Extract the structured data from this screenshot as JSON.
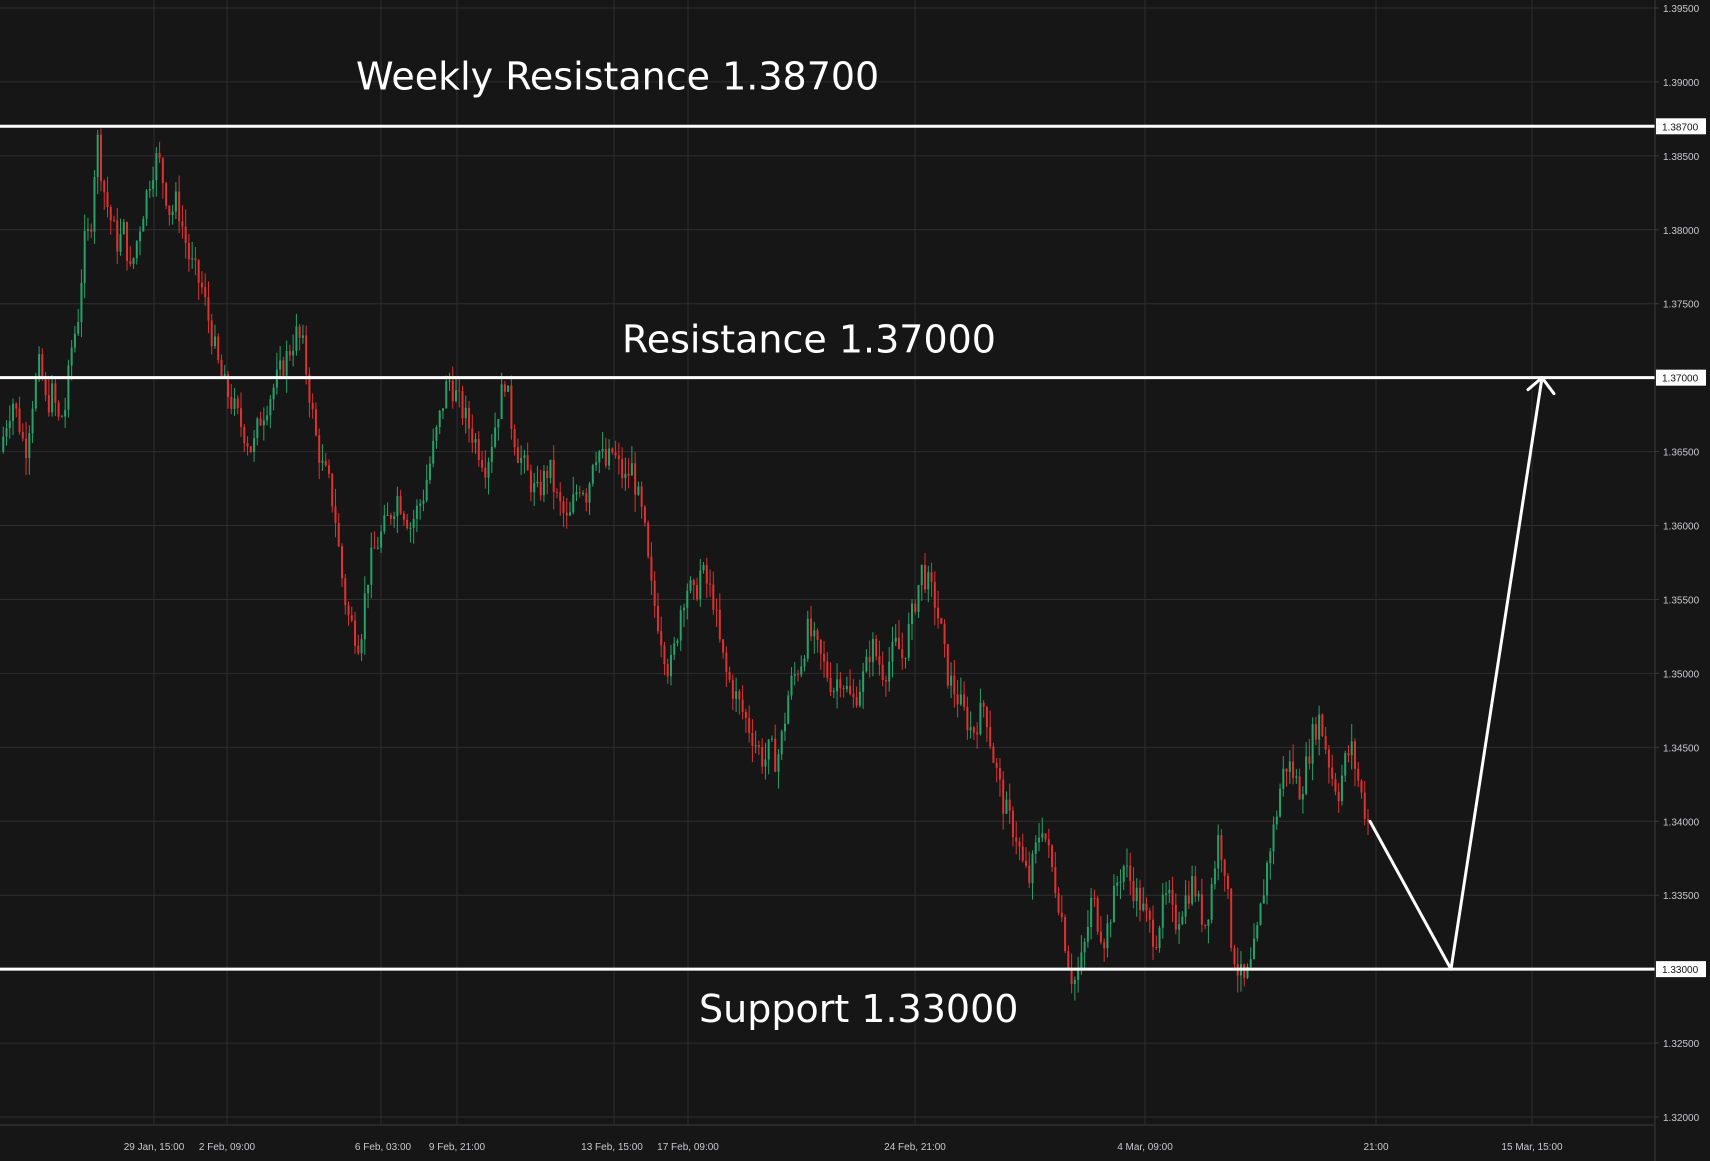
{
  "colors": {
    "background": "#161617",
    "grid": "#2e2e30",
    "up": "#26a269",
    "down": "#e0312f",
    "level": "#ffffff"
  },
  "chart_data": {
    "type": "candlestick",
    "instrument_price_axis": "right",
    "ylim": [
      1.3175,
      1.395
    ],
    "grid": true,
    "price_ticks": [
      "1.32000",
      "1.32500",
      "1.33000",
      "1.33500",
      "1.34000",
      "1.34500",
      "1.35000",
      "1.35500",
      "1.36000",
      "1.36500",
      "1.37000",
      "1.37500",
      "1.38000",
      "1.38500",
      "1.38700",
      "1.39000",
      "1.39500"
    ],
    "time_ticks": [
      "29 Jan, 15:00",
      "2 Feb, 09:00",
      "6 Feb, 03:00",
      "9 Feb, 21:00",
      "13 Feb, 15:00",
      "17 Feb, 09:00",
      "24 Feb, 21:00",
      "4 Mar, 09:00",
      "21:00",
      "15 Mar, 15:00"
    ],
    "levels": [
      {
        "label": "Weekly Resistance 1.38700",
        "price": 1.387,
        "tag": "1.38700"
      },
      {
        "label": "Resistance 1.37000",
        "price": 1.37,
        "tag": "1.37000"
      },
      {
        "label": "Support 1.33000",
        "price": 1.33,
        "tag": "1.33000"
      }
    ],
    "close_path": [
      [
        0,
        1.365
      ],
      [
        0.3,
        1.367
      ],
      [
        0.6,
        1.3685
      ],
      [
        0.9,
        1.367
      ],
      [
        1.2,
        1.365
      ],
      [
        1.6,
        1.369
      ],
      [
        1.9,
        1.371
      ],
      [
        2.2,
        1.368
      ],
      [
        2.5,
        1.369
      ],
      [
        2.8,
        1.367
      ],
      [
        3.1,
        1.368
      ],
      [
        3.4,
        1.372
      ],
      [
        3.7,
        1.374
      ],
      [
        4.0,
        1.379
      ],
      [
        4.3,
        1.38
      ],
      [
        4.6,
        1.3865
      ],
      [
        4.9,
        1.383
      ],
      [
        5.2,
        1.381
      ],
      [
        5.6,
        1.379
      ],
      [
        5.9,
        1.38
      ],
      [
        6.2,
        1.377
      ],
      [
        6.6,
        1.38
      ],
      [
        6.9,
        1.382
      ],
      [
        7.2,
        1.384
      ],
      [
        7.5,
        1.385
      ],
      [
        7.8,
        1.383
      ],
      [
        8.1,
        1.381
      ],
      [
        8.4,
        1.382
      ],
      [
        8.7,
        1.38
      ],
      [
        9.0,
        1.378
      ],
      [
        9.3,
        1.377
      ],
      [
        9.6,
        1.376
      ],
      [
        9.9,
        1.374
      ],
      [
        10.2,
        1.372
      ],
      [
        10.5,
        1.37
      ],
      [
        10.8,
        1.369
      ],
      [
        11.1,
        1.368
      ],
      [
        11.4,
        1.367
      ],
      [
        11.7,
        1.366
      ],
      [
        12.0,
        1.365
      ],
      [
        12.3,
        1.367
      ],
      [
        12.6,
        1.368
      ],
      [
        12.9,
        1.369
      ],
      [
        13.2,
        1.37
      ],
      [
        13.5,
        1.371
      ],
      [
        13.8,
        1.372
      ],
      [
        14.1,
        1.373
      ],
      [
        14.4,
        1.372
      ],
      [
        14.7,
        1.369
      ],
      [
        15.0,
        1.366
      ],
      [
        15.3,
        1.364
      ],
      [
        15.6,
        1.363
      ],
      [
        15.9,
        1.361
      ],
      [
        16.2,
        1.357
      ],
      [
        16.5,
        1.354
      ],
      [
        16.8,
        1.353
      ],
      [
        17.1,
        1.352
      ],
      [
        17.4,
        1.356
      ],
      [
        17.7,
        1.358
      ],
      [
        18.0,
        1.359
      ],
      [
        18.3,
        1.36
      ],
      [
        18.6,
        1.361
      ],
      [
        18.9,
        1.362
      ],
      [
        19.2,
        1.361
      ],
      [
        19.5,
        1.36
      ],
      [
        19.8,
        1.361
      ],
      [
        20.1,
        1.362
      ],
      [
        20.4,
        1.364
      ],
      [
        20.7,
        1.366
      ],
      [
        21.0,
        1.368
      ],
      [
        21.3,
        1.37
      ],
      [
        21.6,
        1.369
      ],
      [
        21.9,
        1.368
      ],
      [
        22.2,
        1.367
      ],
      [
        22.5,
        1.366
      ],
      [
        22.8,
        1.365
      ],
      [
        23.1,
        1.364
      ],
      [
        23.4,
        1.366
      ],
      [
        23.7,
        1.368
      ],
      [
        24.0,
        1.37
      ],
      [
        24.3,
        1.367
      ],
      [
        24.6,
        1.365
      ],
      [
        24.9,
        1.364
      ],
      [
        25.2,
        1.363
      ],
      [
        25.5,
        1.362
      ],
      [
        25.8,
        1.363
      ],
      [
        26.1,
        1.364
      ],
      [
        26.4,
        1.362
      ],
      [
        26.7,
        1.361
      ],
      [
        27.0,
        1.36
      ],
      [
        27.3,
        1.362
      ],
      [
        27.6,
        1.363
      ],
      [
        27.9,
        1.362
      ],
      [
        28.2,
        1.365
      ],
      [
        28.5,
        1.365
      ],
      [
        28.8,
        1.364
      ],
      [
        29.1,
        1.365
      ],
      [
        29.4,
        1.364
      ],
      [
        29.7,
        1.363
      ],
      [
        30.0,
        1.364
      ],
      [
        30.3,
        1.362
      ],
      [
        30.6,
        1.36
      ],
      [
        30.9,
        1.356
      ],
      [
        31.2,
        1.354
      ],
      [
        31.5,
        1.352
      ],
      [
        31.8,
        1.35
      ],
      [
        32.1,
        1.352
      ],
      [
        32.4,
        1.355
      ],
      [
        32.7,
        1.356
      ],
      [
        33.0,
        1.355
      ],
      [
        33.3,
        1.357
      ],
      [
        33.6,
        1.356
      ],
      [
        33.9,
        1.355
      ],
      [
        34.2,
        1.352
      ],
      [
        34.5,
        1.35
      ],
      [
        34.8,
        1.349
      ],
      [
        35.1,
        1.348
      ],
      [
        35.4,
        1.347
      ],
      [
        35.7,
        1.346
      ],
      [
        36.0,
        1.345
      ],
      [
        36.3,
        1.344
      ],
      [
        36.6,
        1.345
      ],
      [
        36.9,
        1.344
      ],
      [
        37.2,
        1.346
      ],
      [
        37.5,
        1.349
      ],
      [
        37.8,
        1.35
      ],
      [
        38.1,
        1.351
      ],
      [
        38.4,
        1.353
      ],
      [
        38.7,
        1.352
      ],
      [
        39.0,
        1.351
      ],
      [
        39.3,
        1.35
      ],
      [
        39.6,
        1.349
      ],
      [
        39.9,
        1.35
      ],
      [
        40.2,
        1.349
      ],
      [
        40.5,
        1.348
      ],
      [
        40.8,
        1.349
      ],
      [
        41.1,
        1.35
      ],
      [
        41.4,
        1.352
      ],
      [
        41.7,
        1.351
      ],
      [
        42.0,
        1.35
      ],
      [
        42.3,
        1.351
      ],
      [
        42.6,
        1.352
      ],
      [
        42.9,
        1.351
      ],
      [
        43.2,
        1.353
      ],
      [
        43.5,
        1.355
      ],
      [
        43.8,
        1.357
      ],
      [
        44.1,
        1.356
      ],
      [
        44.4,
        1.355
      ],
      [
        44.7,
        1.353
      ],
      [
        45.0,
        1.35
      ],
      [
        45.3,
        1.349
      ],
      [
        45.6,
        1.348
      ],
      [
        45.9,
        1.347
      ],
      [
        46.2,
        1.346
      ],
      [
        46.5,
        1.347
      ],
      [
        46.8,
        1.348
      ],
      [
        47.1,
        1.345
      ],
      [
        47.4,
        1.343
      ],
      [
        47.7,
        1.341
      ],
      [
        48.0,
        1.34
      ],
      [
        48.3,
        1.339
      ],
      [
        48.6,
        1.337
      ],
      [
        48.9,
        1.336
      ],
      [
        49.2,
        1.338
      ],
      [
        49.5,
        1.34
      ],
      [
        49.8,
        1.338
      ],
      [
        50.1,
        1.336
      ],
      [
        50.4,
        1.334
      ],
      [
        50.7,
        1.331
      ],
      [
        51.0,
        1.329
      ],
      [
        51.3,
        1.33
      ],
      [
        51.6,
        1.332
      ],
      [
        51.9,
        1.335
      ],
      [
        52.2,
        1.333
      ],
      [
        52.5,
        1.332
      ],
      [
        52.8,
        1.334
      ],
      [
        53.1,
        1.336
      ],
      [
        53.4,
        1.337
      ],
      [
        53.7,
        1.336
      ],
      [
        54.0,
        1.335
      ],
      [
        54.3,
        1.334
      ],
      [
        54.6,
        1.333
      ],
      [
        54.9,
        1.332
      ],
      [
        55.2,
        1.334
      ],
      [
        55.5,
        1.335
      ],
      [
        55.8,
        1.333
      ],
      [
        56.1,
        1.334
      ],
      [
        56.4,
        1.335
      ],
      [
        56.7,
        1.336
      ],
      [
        57.0,
        1.334
      ],
      [
        57.3,
        1.333
      ],
      [
        57.6,
        1.336
      ],
      [
        57.9,
        1.339
      ],
      [
        58.2,
        1.337
      ],
      [
        58.5,
        1.332
      ],
      [
        58.8,
        1.33
      ],
      [
        59.1,
        1.329
      ],
      [
        59.4,
        1.33
      ],
      [
        59.7,
        1.332
      ],
      [
        60.0,
        1.335
      ],
      [
        60.3,
        1.338
      ],
      [
        60.6,
        1.34
      ],
      [
        60.9,
        1.343
      ],
      [
        61.2,
        1.344
      ],
      [
        61.5,
        1.343
      ],
      [
        61.8,
        1.342
      ],
      [
        62.1,
        1.344
      ],
      [
        62.4,
        1.346
      ],
      [
        62.7,
        1.347
      ],
      [
        63.0,
        1.345
      ],
      [
        63.3,
        1.343
      ],
      [
        63.6,
        1.342
      ],
      [
        63.9,
        1.344
      ],
      [
        64.2,
        1.345
      ],
      [
        64.5,
        1.343
      ],
      [
        64.8,
        1.341
      ],
      [
        65.0,
        1.34
      ]
    ],
    "projection": [
      [
        1.34,
        0
      ],
      [
        1.33,
        1
      ],
      [
        1.37,
        2
      ]
    ]
  }
}
